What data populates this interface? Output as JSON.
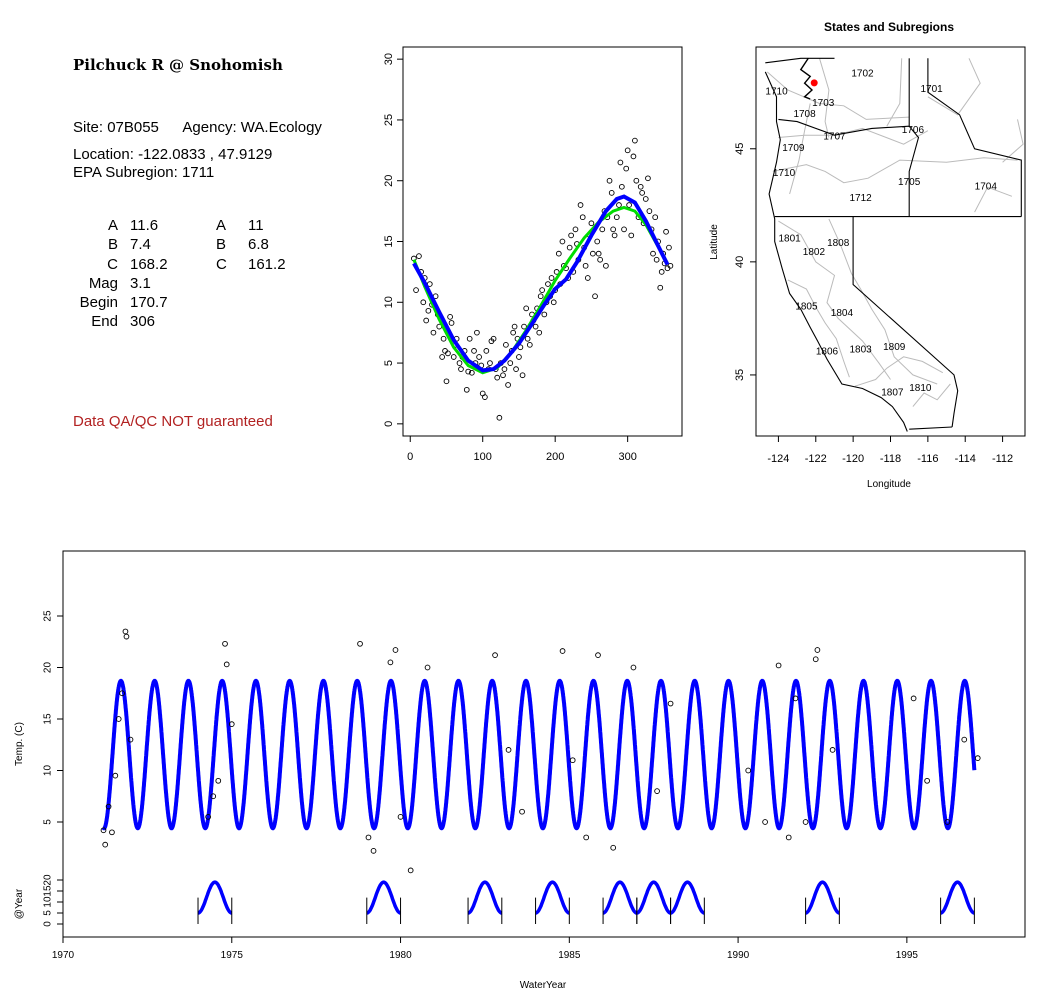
{
  "site": {
    "title": "Pilchuck R @ Snohomish",
    "site_label": "Site:",
    "site_id": "07B055",
    "agency_label": "Agency:",
    "agency": "WA.Ecology",
    "location_label": "Location:",
    "location": "-122.0833 , 47.9129",
    "subregion_label": "EPA Subregion:",
    "subregion": "1711",
    "qa_note": "Data QA/QC NOT guaranteed"
  },
  "params": [
    {
      "label": "A",
      "v1": "11.6",
      "label2": "A",
      "v2": "11"
    },
    {
      "label": "B",
      "v1": "7.4",
      "label2": "B",
      "v2": "6.8"
    },
    {
      "label": "C",
      "v1": "168.2",
      "label2": "C",
      "v2": "161.2"
    },
    {
      "label": "Mag",
      "v1": "3.1",
      "label2": "",
      "v2": ""
    },
    {
      "label": "Begin",
      "v1": "170.7",
      "label2": "",
      "v2": ""
    },
    {
      "label": "End",
      "v1": "306",
      "label2": "",
      "v2": ""
    }
  ],
  "colors": {
    "fit_blue": "#0000ff",
    "fit_green": "#00dd00",
    "marker_red": "#ff0000",
    "boundary_gray": "#bbbbbb",
    "qa_red": "#b22222"
  },
  "chart_data": [
    {
      "id": "seasonal",
      "type": "scatter",
      "title": "",
      "xlabel": "",
      "ylabel": "",
      "xlim": [
        -10,
        375
      ],
      "ylim": [
        -1,
        31
      ],
      "xticks": [
        0,
        100,
        200,
        300
      ],
      "yticks": [
        0,
        5,
        10,
        15,
        20,
        25,
        30
      ],
      "points": [
        [
          5,
          13.6
        ],
        [
          8,
          11
        ],
        [
          12,
          13.8
        ],
        [
          15,
          12.5
        ],
        [
          18,
          10
        ],
        [
          20,
          12
        ],
        [
          22,
          8.5
        ],
        [
          25,
          9.3
        ],
        [
          27,
          11.5
        ],
        [
          30,
          9.8
        ],
        [
          32,
          7.5
        ],
        [
          35,
          10.5
        ],
        [
          38,
          9
        ],
        [
          40,
          8
        ],
        [
          44,
          5.5
        ],
        [
          46,
          7
        ],
        [
          48,
          6
        ],
        [
          50,
          3.5
        ],
        [
          52,
          5.8
        ],
        [
          55,
          8.8
        ],
        [
          57,
          8.3
        ],
        [
          60,
          5.5
        ],
        [
          62,
          6.5
        ],
        [
          64,
          7
        ],
        [
          68,
          5
        ],
        [
          70,
          4.5
        ],
        [
          72,
          5.5
        ],
        [
          75,
          6
        ],
        [
          78,
          2.8
        ],
        [
          80,
          4.3
        ],
        [
          82,
          7
        ],
        [
          85,
          4.2
        ],
        [
          88,
          6
        ],
        [
          90,
          5
        ],
        [
          92,
          7.5
        ],
        [
          95,
          5.5
        ],
        [
          98,
          4.8
        ],
        [
          100,
          2.5
        ],
        [
          103,
          2.2
        ],
        [
          105,
          6
        ],
        [
          108,
          4.5
        ],
        [
          110,
          5
        ],
        [
          112,
          6.8
        ],
        [
          115,
          7
        ],
        [
          118,
          4.5
        ],
        [
          120,
          3.8
        ],
        [
          123,
          0.5
        ],
        [
          125,
          5
        ],
        [
          128,
          4
        ],
        [
          130,
          4.5
        ],
        [
          132,
          6.5
        ],
        [
          135,
          3.2
        ],
        [
          138,
          5
        ],
        [
          140,
          6
        ],
        [
          142,
          7.5
        ],
        [
          144,
          8
        ],
        [
          146,
          4.5
        ],
        [
          148,
          7
        ],
        [
          150,
          5.5
        ],
        [
          152,
          6.3
        ],
        [
          155,
          4
        ],
        [
          157,
          8
        ],
        [
          160,
          9.5
        ],
        [
          162,
          7
        ],
        [
          165,
          6.5
        ],
        [
          168,
          9
        ],
        [
          170,
          8.5
        ],
        [
          173,
          8
        ],
        [
          175,
          9.5
        ],
        [
          178,
          7.5
        ],
        [
          180,
          10.5
        ],
        [
          182,
          11
        ],
        [
          185,
          9
        ],
        [
          188,
          10
        ],
        [
          190,
          11.5
        ],
        [
          193,
          10.5
        ],
        [
          195,
          12
        ],
        [
          198,
          10
        ],
        [
          200,
          11
        ],
        [
          202,
          12.5
        ],
        [
          205,
          14
        ],
        [
          207,
          11.5
        ],
        [
          210,
          15
        ],
        [
          212,
          13
        ],
        [
          215,
          12.8
        ],
        [
          218,
          12
        ],
        [
          220,
          14.5
        ],
        [
          222,
          15.5
        ],
        [
          225,
          12.5
        ],
        [
          228,
          16
        ],
        [
          230,
          14.8
        ],
        [
          232,
          13.5
        ],
        [
          235,
          18
        ],
        [
          238,
          17
        ],
        [
          240,
          14.5
        ],
        [
          242,
          13
        ],
        [
          245,
          12
        ],
        [
          248,
          15.5
        ],
        [
          250,
          16.5
        ],
        [
          252,
          14
        ],
        [
          255,
          10.5
        ],
        [
          258,
          15
        ],
        [
          260,
          14
        ],
        [
          262,
          13.5
        ],
        [
          265,
          16
        ],
        [
          268,
          17.5
        ],
        [
          270,
          13
        ],
        [
          272,
          17
        ],
        [
          275,
          20
        ],
        [
          278,
          19
        ],
        [
          280,
          16
        ],
        [
          282,
          15.5
        ],
        [
          285,
          17
        ],
        [
          288,
          18
        ],
        [
          290,
          21.5
        ],
        [
          292,
          19.5
        ],
        [
          295,
          16
        ],
        [
          298,
          21
        ],
        [
          300,
          22.5
        ],
        [
          302,
          18
        ],
        [
          305,
          15.5
        ],
        [
          308,
          22
        ],
        [
          310,
          23.3
        ],
        [
          312,
          20
        ],
        [
          315,
          17
        ],
        [
          318,
          19.5
        ],
        [
          320,
          19
        ],
        [
          322,
          16.5
        ],
        [
          325,
          18.5
        ],
        [
          328,
          20.2
        ],
        [
          330,
          17.5
        ],
        [
          333,
          16
        ],
        [
          335,
          14
        ],
        [
          338,
          17
        ],
        [
          340,
          13.5
        ],
        [
          342,
          15
        ],
        [
          345,
          11.2
        ],
        [
          347,
          12.5
        ],
        [
          349,
          14
        ],
        [
          351,
          13.2
        ],
        [
          353,
          15.8
        ],
        [
          355,
          12.8
        ],
        [
          357,
          14.5
        ],
        [
          359,
          13
        ]
      ],
      "fit_blue": [
        [
          5,
          13.2
        ],
        [
          20,
          11.6
        ],
        [
          40,
          9.2
        ],
        [
          60,
          6.9
        ],
        [
          80,
          5.2
        ],
        [
          100,
          4.4
        ],
        [
          115,
          4.5
        ],
        [
          130,
          5.2
        ],
        [
          150,
          6.6
        ],
        [
          170,
          8.4
        ],
        [
          185,
          9.8
        ],
        [
          200,
          11.1
        ],
        [
          215,
          11.9
        ],
        [
          230,
          13.3
        ],
        [
          250,
          15.5
        ],
        [
          270,
          17.5
        ],
        [
          285,
          18.5
        ],
        [
          295,
          18.7
        ],
        [
          310,
          18.2
        ],
        [
          325,
          16.7
        ],
        [
          340,
          14.9
        ],
        [
          355,
          13.1
        ]
      ],
      "fit_green": [
        [
          5,
          13.5
        ],
        [
          20,
          11.3
        ],
        [
          40,
          8.6
        ],
        [
          60,
          6.3
        ],
        [
          80,
          4.8
        ],
        [
          100,
          4.2
        ],
        [
          120,
          4.6
        ],
        [
          140,
          5.9
        ],
        [
          160,
          7.7
        ],
        [
          180,
          9.7
        ],
        [
          200,
          11.8
        ],
        [
          220,
          13.6
        ],
        [
          240,
          15.3
        ],
        [
          260,
          16.6
        ],
        [
          280,
          17.5
        ],
        [
          295,
          17.8
        ],
        [
          310,
          17.5
        ],
        [
          325,
          16.4
        ],
        [
          340,
          14.8
        ],
        [
          355,
          13.2
        ]
      ]
    },
    {
      "id": "map",
      "type": "map",
      "title": "States and Subregions",
      "xlabel": "Longitude",
      "ylabel": "Latitude",
      "xlim": [
        -125.2,
        -110.8
      ],
      "ylim": [
        32.3,
        49.5
      ],
      "xticks": [
        -124,
        -122,
        -120,
        -118,
        -116,
        -114,
        -112
      ],
      "yticks": [
        35,
        40,
        45
      ],
      "site_point": [
        -122.0833,
        47.9129
      ],
      "regions": [
        {
          "id": "1702",
          "lon": -119.5,
          "lat": 48.2
        },
        {
          "id": "1701",
          "lon": -115.8,
          "lat": 47.5
        },
        {
          "id": "1710",
          "lon": -124.1,
          "lat": 47.4
        },
        {
          "id": "1703",
          "lon": -121.6,
          "lat": 46.9
        },
        {
          "id": "1708",
          "lon": -122.6,
          "lat": 46.4
        },
        {
          "id": "1706",
          "lon": -116.8,
          "lat": 45.7
        },
        {
          "id": "1707",
          "lon": -121.0,
          "lat": 45.4
        },
        {
          "id": "1709",
          "lon": -123.2,
          "lat": 44.9
        },
        {
          "id": "1710",
          "lon": -123.7,
          "lat": 43.8
        },
        {
          "id": "1705",
          "lon": -117.0,
          "lat": 43.4
        },
        {
          "id": "1704",
          "lon": -112.9,
          "lat": 43.2
        },
        {
          "id": "1712",
          "lon": -119.6,
          "lat": 42.7
        },
        {
          "id": "1801",
          "lon": -123.4,
          "lat": 40.9
        },
        {
          "id": "1808",
          "lon": -120.8,
          "lat": 40.7
        },
        {
          "id": "1802",
          "lon": -122.1,
          "lat": 40.3
        },
        {
          "id": "1805",
          "lon": -122.5,
          "lat": 37.9
        },
        {
          "id": "1804",
          "lon": -120.6,
          "lat": 37.6
        },
        {
          "id": "1809",
          "lon": -117.8,
          "lat": 36.1
        },
        {
          "id": "1806",
          "lon": -121.4,
          "lat": 35.9
        },
        {
          "id": "1803",
          "lon": -119.6,
          "lat": 36.0
        },
        {
          "id": "1810",
          "lon": -116.4,
          "lat": 34.3
        },
        {
          "id": "1807",
          "lon": -117.9,
          "lat": 34.1
        }
      ]
    },
    {
      "id": "timeseries",
      "type": "line",
      "title": "",
      "xlabel": "WaterYear",
      "ylabel": "Temp. (C)",
      "ylabel2": "@Year",
      "xlim": [
        1970,
        1998.5
      ],
      "ylim": [
        -3,
        30
      ],
      "xticks": [
        1970,
        1975,
        1980,
        1985,
        1990,
        1995
      ],
      "yticks": [
        5,
        10,
        15,
        20,
        25
      ],
      "yticks2": [
        0,
        5,
        10,
        15,
        20
      ],
      "series_start": 1971.2,
      "series_end": 1997.0,
      "fit_params": {
        "A": 11.6,
        "B": 7.4,
        "C": 168.2
      },
      "outlier_points": [
        [
          1971.2,
          4.2
        ],
        [
          1971.25,
          2.8
        ],
        [
          1971.35,
          6.5
        ],
        [
          1971.45,
          4.0
        ],
        [
          1971.55,
          9.5
        ],
        [
          1971.65,
          15
        ],
        [
          1971.75,
          17.5
        ],
        [
          1971.85,
          23.5
        ],
        [
          1971.88,
          23
        ],
        [
          1972.0,
          13
        ],
        [
          1974.3,
          5.5
        ],
        [
          1974.45,
          7.5
        ],
        [
          1974.6,
          9
        ],
        [
          1974.8,
          22.3
        ],
        [
          1974.85,
          20.3
        ],
        [
          1975.0,
          14.5
        ],
        [
          1978.8,
          22.3
        ],
        [
          1979.05,
          3.5
        ],
        [
          1979.2,
          2.2
        ],
        [
          1979.7,
          20.5
        ],
        [
          1979.85,
          21.7
        ],
        [
          1980.0,
          5.5
        ],
        [
          1980.3,
          0.3
        ],
        [
          1980.8,
          20
        ],
        [
          1982.8,
          21.2
        ],
        [
          1983.2,
          12
        ],
        [
          1983.6,
          6
        ],
        [
          1984.8,
          21.6
        ],
        [
          1985.1,
          11
        ],
        [
          1985.5,
          3.5
        ],
        [
          1985.85,
          21.2
        ],
        [
          1986.3,
          2.5
        ],
        [
          1986.9,
          20
        ],
        [
          1987.6,
          8
        ],
        [
          1988.0,
          16.5
        ],
        [
          1990.3,
          10
        ],
        [
          1990.8,
          5
        ],
        [
          1991.2,
          20.2
        ],
        [
          1991.5,
          3.5
        ],
        [
          1991.7,
          17
        ],
        [
          1992.0,
          5
        ],
        [
          1992.3,
          20.8
        ],
        [
          1992.35,
          21.7
        ],
        [
          1992.8,
          12
        ],
        [
          1995.2,
          17
        ],
        [
          1995.6,
          9
        ],
        [
          1996.2,
          5
        ],
        [
          1996.7,
          13
        ],
        [
          1997.1,
          11.2
        ]
      ],
      "annual_fits": [
        1974,
        1979,
        1982,
        1984,
        1986,
        1987,
        1988,
        1992,
        1996
      ]
    }
  ]
}
